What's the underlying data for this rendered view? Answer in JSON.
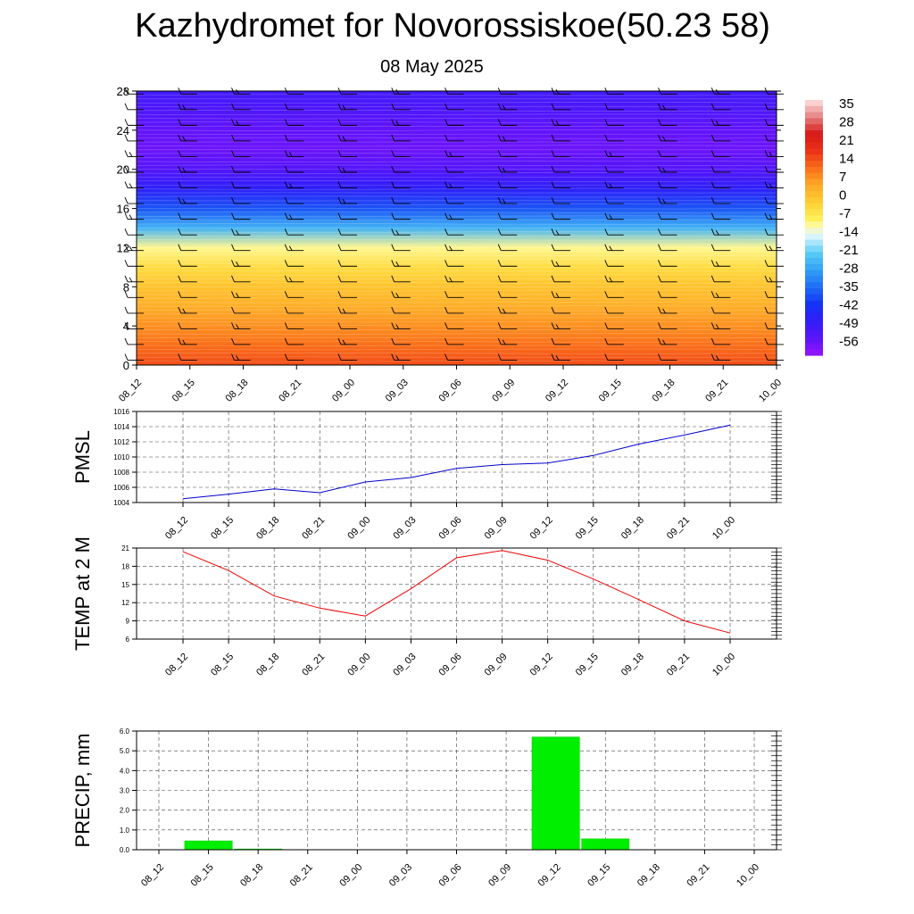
{
  "page": {
    "title": "Kazhydromet for Novorossiskoe(50.23 58)",
    "subtitle": "08 May 2025"
  },
  "time_labels": [
    "08_12",
    "08_15",
    "08_18",
    "08_21",
    "09_00",
    "09_03",
    "09_06",
    "09_09",
    "09_12",
    "09_15",
    "09_18",
    "09_21",
    "10_00"
  ],
  "chart_data": [
    {
      "type": "heatmap",
      "y_ticks": [
        "0",
        "4",
        "8",
        "12",
        "16",
        "20",
        "24",
        "28"
      ],
      "ylim": [
        0,
        28
      ],
      "x": [
        "08_12",
        "08_15",
        "08_18",
        "08_21",
        "09_00",
        "09_03",
        "09_06",
        "09_09",
        "09_12",
        "09_15",
        "09_18",
        "09_21",
        "10_00"
      ],
      "colorbar_labels": [
        "35",
        "28",
        "21",
        "14",
        "7",
        "0",
        "-7",
        "-14",
        "-21",
        "-28",
        "-35",
        "-42",
        "-49",
        "-56"
      ],
      "colorbar_range": [
        -63,
        42
      ],
      "overlay": "wind barbs",
      "profile": {
        "levels": [
          0,
          2,
          4,
          6,
          8,
          10,
          12,
          14,
          16,
          18,
          20,
          22,
          24,
          26,
          28
        ],
        "temps": [
          18,
          14,
          10,
          6,
          2,
          -3,
          -9,
          -25,
          -38,
          -48,
          -55,
          -58,
          -57,
          -54,
          -52
        ]
      }
    },
    {
      "type": "line",
      "ylabel": "PMSL",
      "x": [
        "08_12",
        "08_15",
        "08_18",
        "08_21",
        "09_00",
        "09_03",
        "09_06",
        "09_09",
        "09_12",
        "09_15",
        "09_18",
        "09_21",
        "10_00"
      ],
      "y_ticks": [
        "1004",
        "1006",
        "1008",
        "1010",
        "1012",
        "1014",
        "1016"
      ],
      "ylim": [
        1004,
        1016
      ],
      "values": [
        1004.5,
        1005.1,
        1005.8,
        1005.3,
        1006.7,
        1007.3,
        1008.5,
        1009.0,
        1009.2,
        1010.2,
        1011.7,
        1012.9,
        1014.2
      ],
      "color": "#0000cc"
    },
    {
      "type": "line",
      "ylabel": "TEMP at 2 M",
      "x": [
        "08_12",
        "08_15",
        "08_18",
        "08_21",
        "09_00",
        "09_03",
        "09_06",
        "09_09",
        "09_12",
        "09_15",
        "09_18",
        "09_21",
        "10_00"
      ],
      "y_ticks": [
        "6",
        "9",
        "12",
        "15",
        "18",
        "21"
      ],
      "ylim": [
        6,
        21
      ],
      "values": [
        20.4,
        17.3,
        13.1,
        11.1,
        9.8,
        14.3,
        19.4,
        20.6,
        19.0,
        15.9,
        12.5,
        9.0,
        7.0
      ],
      "color": "#ee0000"
    },
    {
      "type": "bar",
      "ylabel": "PRECIP, mm",
      "categories": [
        "08_12",
        "08_15",
        "08_18",
        "08_21",
        "09_00",
        "09_03",
        "09_06",
        "09_09",
        "09_12",
        "09_15",
        "09_18",
        "09_21",
        "10_00"
      ],
      "y_ticks": [
        "0.0",
        "1.0",
        "2.0",
        "3.0",
        "4.0",
        "5.0",
        "6.0"
      ],
      "ylim": [
        0,
        6
      ],
      "values": [
        0,
        0.45,
        0.04,
        0,
        0,
        0,
        0,
        0,
        5.7,
        0.55,
        0,
        0,
        0
      ],
      "color": "#00ee00"
    }
  ]
}
